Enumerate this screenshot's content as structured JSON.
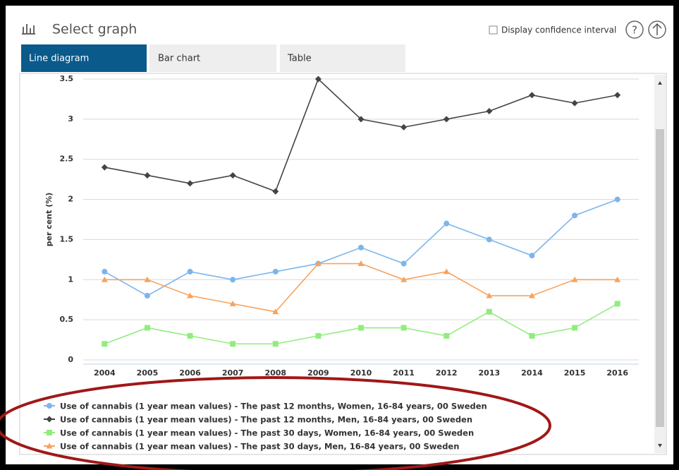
{
  "header": {
    "title": "Select graph",
    "checkbox_label": "Display confidence interval",
    "help_icon": "?"
  },
  "tabs": [
    "Line diagram",
    "Bar chart",
    "Table"
  ],
  "chart_data": {
    "type": "line",
    "y_label": "per cent (%)",
    "categories": [
      "2004",
      "2005",
      "2006",
      "2007",
      "2008",
      "2009",
      "2010",
      "2011",
      "2012",
      "2013",
      "2014",
      "2015",
      "2016"
    ],
    "ylim": [
      0,
      3.5
    ],
    "yticks": [
      0,
      0.5,
      1,
      1.5,
      2,
      2.5,
      3,
      3.5
    ],
    "grid": true,
    "series": [
      {
        "name": "Use of cannabis (1 year mean values) - The past 12 months, Women, 16-84 years, 00 Sweden",
        "color": "#7cb5ec",
        "marker": "circle",
        "values": [
          1.1,
          0.8,
          1.1,
          1.0,
          1.1,
          1.2,
          1.4,
          1.2,
          1.7,
          1.5,
          1.3,
          1.8,
          2.0
        ]
      },
      {
        "name": "Use of cannabis (1 year mean values) - The past 12 months, Men, 16-84 years, 00 Sweden",
        "color": "#434348",
        "marker": "diamond",
        "values": [
          2.4,
          2.3,
          2.2,
          2.3,
          2.1,
          3.5,
          3.0,
          2.9,
          3.0,
          3.1,
          3.3,
          3.2,
          3.3
        ]
      },
      {
        "name": "Use of cannabis (1 year mean values) - The past 30 days, Women, 16-84 years, 00 Sweden",
        "color": "#90ed7d",
        "marker": "square",
        "values": [
          0.2,
          0.4,
          0.3,
          0.2,
          0.2,
          0.3,
          0.4,
          0.4,
          0.3,
          0.6,
          0.3,
          0.4,
          0.7
        ]
      },
      {
        "name": "Use of cannabis (1 year mean values) - The past 30 days, Men, 16-84 years, 00 Sweden",
        "color": "#f7a35c",
        "marker": "triangle",
        "values": [
          1.0,
          1.0,
          0.8,
          0.7,
          0.6,
          1.2,
          1.2,
          1.0,
          1.1,
          0.8,
          0.8,
          1.0,
          1.0
        ]
      }
    ]
  }
}
